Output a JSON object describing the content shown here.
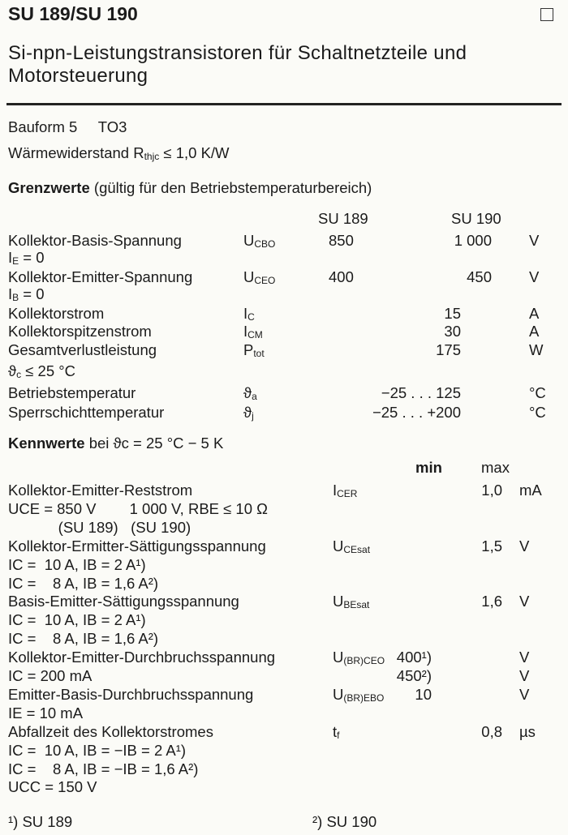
{
  "title": "SU 189/SU 190",
  "subtitle_lines": [
    "Si-npn-Leistungstransistoren für Schaltnetzteile und",
    "Motorsteuerung"
  ],
  "bauform": {
    "label": "Bauform 5",
    "value": "TO3"
  },
  "waermewiderstand": {
    "label": "Wärmewiderstand",
    "symbol": "R",
    "symbol_sub": "thjc",
    "value": "≤ 1,0 K/W"
  },
  "grenzwerte": {
    "heading": "Grenzwerte",
    "heading_note": "(gültig für den Betriebstemperaturbereich)",
    "col_su189": "SU 189",
    "col_su190": "SU 190",
    "rows": [
      {
        "label": "Kollektor-Basis-Spannung",
        "sym": "U",
        "sub": "CBO",
        "v189": "850",
        "v190": "1 000",
        "unit": "V"
      },
      {
        "cond": "I",
        "cond_sub": "E",
        "cond_rest": " = 0"
      },
      {
        "label": "Kollektor-Emitter-Spannung",
        "sym": "U",
        "sub": "CEO",
        "v189": "400",
        "v190": "450",
        "unit": "V"
      },
      {
        "cond": "I",
        "cond_sub": "B",
        "cond_rest": " = 0"
      },
      {
        "label": "Kollektorstrom",
        "sym": "I",
        "sub": "C",
        "both": "15",
        "unit": "A"
      },
      {
        "label": "Kollektorspitzenstrom",
        "sym": "I",
        "sub": "CM",
        "both": "30",
        "unit": "A"
      },
      {
        "label": "Gesamtverlustleistung",
        "sym": "P",
        "sub": "tot",
        "both": "175",
        "unit": "W"
      },
      {
        "cond": "ϑ",
        "cond_sub": "c",
        "cond_rest": " ≤ 25 °C"
      },
      {
        "label": "Betriebstemperatur",
        "sym": "ϑ",
        "sub": "a",
        "both": "−25 . . . 125",
        "unit": "°C"
      },
      {
        "label": "Sperrschichttemperatur",
        "sym": "ϑ",
        "sub": "j",
        "both": "−25 . . . +200",
        "unit": "°C"
      }
    ]
  },
  "kennwerte": {
    "heading": "Kennwerte",
    "heading_note": "bei ϑc = 25 °C − 5 K",
    "col_min": "min",
    "col_max": "max",
    "rows": [
      {
        "label": "Kollektor-Emitter-Reststrom",
        "sym": "I",
        "sub": "CER",
        "max": "1,0",
        "unit": "mA"
      },
      {
        "label": "UCE = 850 V        1 000 V, RBE ≤ 10 Ω"
      },
      {
        "label": "            (SU 189)   (SU 190)"
      },
      {
        "label": "Kollektor-Ermitter-Sättigungsspannung",
        "sym": "U",
        "sub": "CEsat",
        "max": "1,5",
        "unit": "V"
      },
      {
        "label": "IC =  10 A, IB = 2 A¹)"
      },
      {
        "label": "IC =    8 A, IB = 1,6 A²)"
      },
      {
        "label": "Basis-Emitter-Sättigungsspannung",
        "sym": "U",
        "sub": "BEsat",
        "max": "1,6",
        "unit": "V"
      },
      {
        "label": "IC =  10 A, IB = 2 A¹)"
      },
      {
        "label": "IC =    8 A, IB = 1,6 A²)"
      },
      {
        "label": "Kollektor-Emitter-Durchbruchsspannung",
        "sym": "U",
        "sub": "(BR)CEO",
        "min": "400¹)",
        "unit": "V"
      },
      {
        "label": "IC = 200 mA",
        "min": "450²)",
        "unit": "V"
      },
      {
        "label": "Emitter-Basis-Durchbruchsspannung",
        "sym": "U",
        "sub": "(BR)EBO",
        "min": "10",
        "unit": "V"
      },
      {
        "label": "IE = 10 mA"
      },
      {
        "label": "Abfallzeit des Kollektorstromes",
        "sym": "t",
        "sub": "f",
        "max": "0,8",
        "unit": "µs"
      },
      {
        "label": "IC =  10 A, IB = −IB = 2 A¹)"
      },
      {
        "label": "IC =    8 A, IB = −IB = 1,6 A²)"
      },
      {
        "label": "UCC = 150 V"
      }
    ]
  },
  "footnotes": [
    "¹) SU 189",
    "²) SU 190"
  ]
}
